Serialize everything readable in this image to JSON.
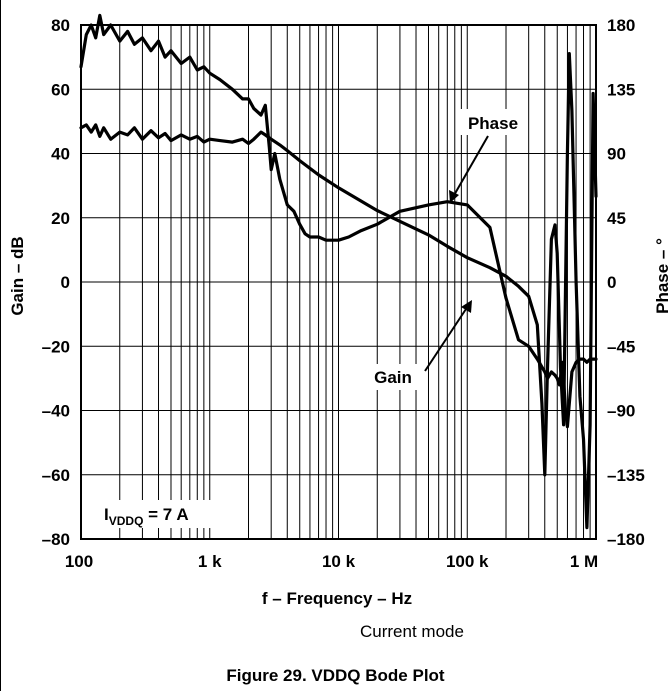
{
  "chart_data": {
    "type": "line",
    "title": "",
    "xlabel": "f – Frequency – Hz",
    "ylabel": "Gain – dB",
    "y2label": "Phase – °",
    "x_scale": "log",
    "xlim": [
      100,
      1000000
    ],
    "ylim": [
      -80,
      80
    ],
    "y2lim": [
      -180,
      180
    ],
    "grid": true,
    "x_ticks": [
      {
        "value": 100,
        "label": "100"
      },
      {
        "value": 1000,
        "label": "1 k"
      },
      {
        "value": 10000,
        "label": "10 k"
      },
      {
        "value": 100000,
        "label": "100 k"
      },
      {
        "value": 1000000,
        "label": "1 M"
      }
    ],
    "y_ticks": [
      {
        "value": 80,
        "label": "80"
      },
      {
        "value": 60,
        "label": "60"
      },
      {
        "value": 40,
        "label": "40"
      },
      {
        "value": 20,
        "label": "20"
      },
      {
        "value": 0,
        "label": "0"
      },
      {
        "value": -20,
        "label": "–20"
      },
      {
        "value": -40,
        "label": "–40"
      },
      {
        "value": -60,
        "label": "–60"
      },
      {
        "value": -80,
        "label": "–80"
      }
    ],
    "y2_ticks": [
      {
        "value": 180,
        "label": "180"
      },
      {
        "value": 135,
        "label": "135"
      },
      {
        "value": 90,
        "label": "90"
      },
      {
        "value": 45,
        "label": "45"
      },
      {
        "value": 0,
        "label": "0"
      },
      {
        "value": -45,
        "label": "–45"
      },
      {
        "value": -90,
        "label": "–90"
      },
      {
        "value": -135,
        "label": "–135"
      },
      {
        "value": -180,
        "label": "–180"
      }
    ],
    "series": [
      {
        "name": "Gain",
        "axis": "left",
        "x": [
          100,
          110,
          120,
          130,
          140,
          150,
          170,
          200,
          230,
          260,
          300,
          350,
          400,
          450,
          500,
          600,
          700,
          800,
          900,
          1000,
          1200,
          1500,
          1800,
          2000,
          2200,
          2500,
          2700,
          2900,
          3000,
          3200,
          3500,
          4000,
          4500,
          5000,
          5500,
          6000,
          7000,
          8000,
          10000,
          12000,
          15000,
          20000,
          30000,
          50000,
          70000,
          100000,
          150000,
          200000,
          250000,
          300000,
          350000,
          400000,
          420000,
          450000,
          480000,
          500000,
          520000,
          550000,
          580000,
          600000,
          650000,
          700000,
          750000,
          800000,
          850000,
          900000,
          950000,
          1000000
        ],
        "y": [
          67,
          77,
          80,
          76,
          83,
          77,
          80,
          75,
          78,
          74,
          76,
          72,
          75,
          70,
          72,
          68,
          70,
          66,
          67,
          65,
          63,
          60,
          57,
          57,
          54,
          52,
          55,
          42,
          35,
          40,
          32,
          24,
          22,
          18,
          15,
          14,
          14,
          13,
          13,
          14,
          16,
          18,
          22,
          24,
          25,
          24,
          17,
          -5,
          -18,
          -20,
          -24,
          -28,
          -30,
          -28,
          -29,
          -30,
          -32,
          -25,
          -40,
          -45,
          -28,
          -25,
          -24,
          -24,
          -25,
          -24,
          -24,
          -24
        ]
      },
      {
        "name": "Phase",
        "axis": "right",
        "x": [
          100,
          110,
          120,
          130,
          140,
          150,
          170,
          200,
          230,
          260,
          300,
          350,
          400,
          450,
          500,
          600,
          700,
          800,
          900,
          1000,
          1200,
          1500,
          1800,
          2000,
          2200,
          2500,
          2700,
          3000,
          3500,
          4000,
          5000,
          7000,
          10000,
          20000,
          50000,
          70000,
          100000,
          150000,
          200000,
          250000,
          300000,
          350000,
          380000,
          400000,
          420000,
          450000,
          480000,
          500000,
          530000,
          560000,
          600000,
          620000,
          650000,
          700000,
          750000,
          800000,
          850000,
          900000,
          950000,
          1000000
        ],
        "y": [
          108,
          110,
          105,
          110,
          102,
          108,
          100,
          105,
          103,
          108,
          100,
          106,
          101,
          104,
          99,
          103,
          100,
          102,
          98,
          100,
          99,
          98,
          100,
          97,
          100,
          105,
          103,
          100,
          96,
          92,
          85,
          75,
          66,
          50,
          33,
          25,
          17,
          10,
          4,
          -3,
          -10,
          -30,
          -85,
          -135,
          -60,
          30,
          40,
          20,
          -60,
          -100,
          90,
          160,
          120,
          0,
          -80,
          -110,
          -172,
          -100,
          132,
          60
        ]
      }
    ],
    "annotations": [
      {
        "text": "Phase"
      },
      {
        "text": "Gain"
      },
      {
        "text_main": "I",
        "text_sub": "VDDQ",
        "text_rest": " = 7 A"
      }
    ]
  },
  "subtitle_text": "Current mode",
  "caption": "Figure 29. VDDQ Bode Plot"
}
